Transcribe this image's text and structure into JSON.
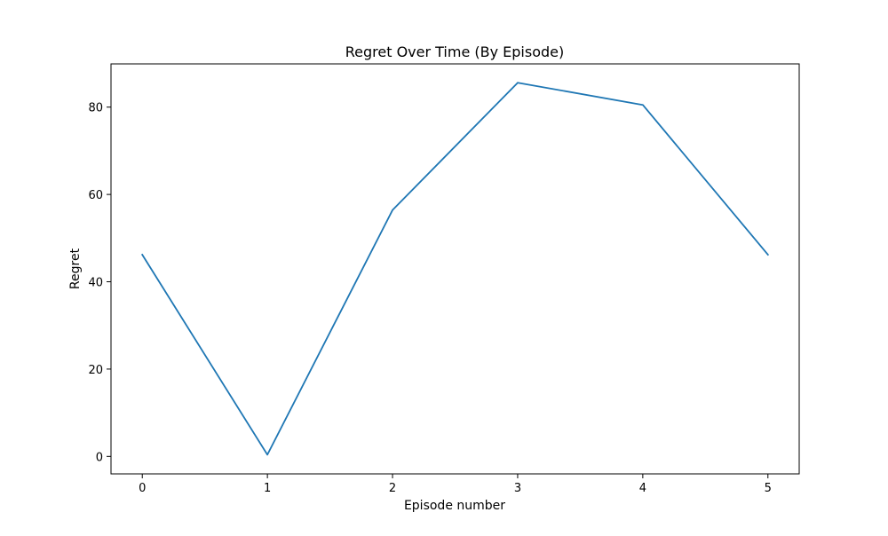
{
  "chart_data": {
    "type": "line",
    "title": "Regret Over Time (By Episode)",
    "xlabel": "Episode number",
    "ylabel": "Regret",
    "x": [
      0,
      1,
      2,
      3,
      4,
      5
    ],
    "series": [
      {
        "values": [
          46.2,
          0.4,
          56.4,
          85.6,
          80.5,
          46.2
        ]
      }
    ],
    "xlim": [
      -0.25,
      5.25
    ],
    "ylim": [
      -4.0,
      89.9
    ],
    "xticks": [
      0,
      1,
      2,
      3,
      4,
      5
    ],
    "xtick_labels": [
      "0",
      "1",
      "2",
      "3",
      "4",
      "5"
    ],
    "yticks": [
      0,
      20,
      40,
      60,
      80
    ],
    "ytick_labels": [
      "0",
      "20",
      "40",
      "60",
      "80"
    ],
    "grid": false,
    "legend": "none",
    "line_color": "#1f77b4"
  }
}
